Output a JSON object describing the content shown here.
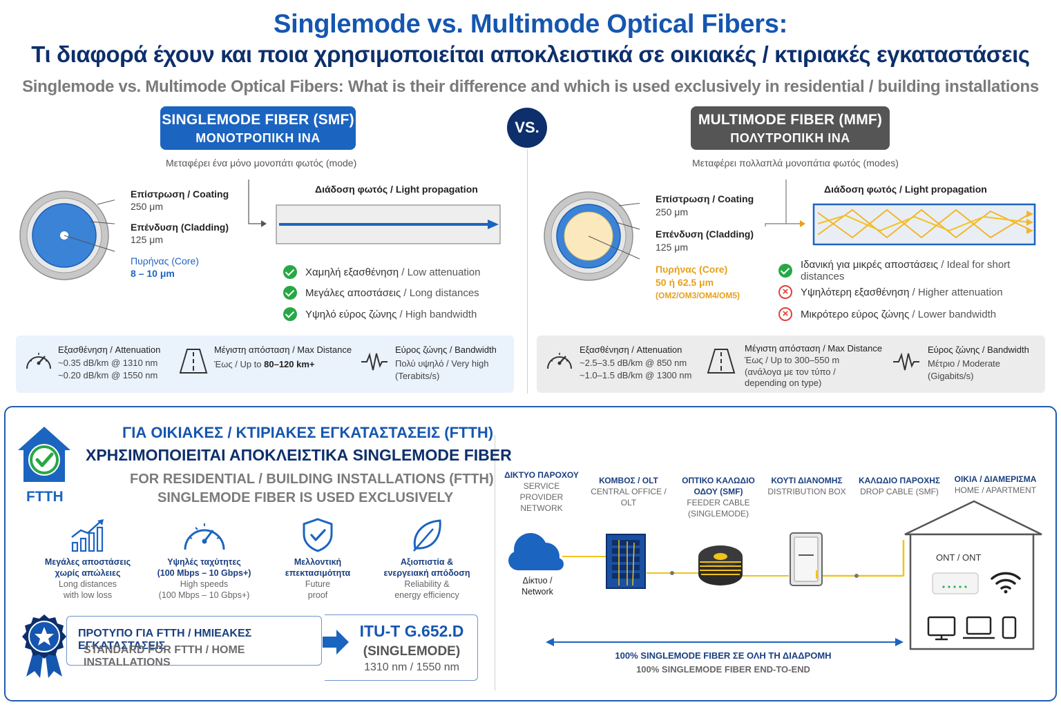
{
  "header": {
    "title_en": "Singlemode vs. Multimode Optical Fibers:",
    "title_gr": "Τι διαφορά έχουν και ποια χρησιμοποιείται αποκλειστικά σε οικιακές / κτιριακές εγκαταστάσεις",
    "subtitle": "Singlemode vs. Multimode Optical Fibers: What is their difference and which is used exclusively in residential / building installations"
  },
  "vs_label": "VS.",
  "smf": {
    "title": "SINGLEMODE FIBER (SMF)",
    "title_gr": "ΜΟΝΟΤΡΟΠΙΚΗ ΙΝΑ",
    "description": "Μεταφέρει ένα μόνο μονοπάτι φωτός (mode)",
    "coating_label": "Επίστρωση / Coating",
    "coating_value": "250 μm",
    "cladding_label": "Επένδυση (Cladding)",
    "cladding_value": "125 μm",
    "core_label": "Πυρήνας (Core)",
    "core_value": "8 – 10 μm",
    "propagation_label": "Διάδοση φωτός / Light propagation",
    "benefits": [
      {
        "gr": "Χαμηλή εξασθένηση",
        "en": " / Low attenuation"
      },
      {
        "gr": "Μεγάλες αποστάσεις",
        "en": " / Long distances"
      },
      {
        "gr": "Υψηλό εύρος ζώνης",
        "en": " / High bandwidth"
      }
    ],
    "stats": {
      "attenuation_title": "Εξασθένηση / Attenuation",
      "attenuation_1": "~0.35 dB/km @ 1310 nm",
      "attenuation_2": "~0.20 dB/km @ 1550 nm",
      "distance_title": "Μέγιστη απόσταση / Max Distance",
      "distance_prefix": "Έως / Up to ",
      "distance_value": "80–120 km+",
      "bandwidth_title": "Εύρος ζώνης / Bandwidth",
      "bandwidth_1": "Πολύ υψηλό / Very high",
      "bandwidth_2": "(Terabits/s)"
    }
  },
  "mmf": {
    "title": "MULTIMODE FIBER (MMF)",
    "title_gr": "ΠΟΛΥΤΡΟΠΙΚΗ ΙΝΑ",
    "description": "Μεταφέρει πολλαπλά μονοπάτια φωτός (modes)",
    "coating_label": "Επίστρωση / Coating",
    "coating_value": "250 μm",
    "cladding_label": "Επένδυση (Cladding)",
    "cladding_value": "125 μm",
    "core_label": "Πυρήνας (Core)",
    "core_value": "50 ή 62.5 μm",
    "core_types": "(OM2/OM3/OM4/OM5)",
    "propagation_label": "Διάδοση φωτός / Light propagation",
    "benefits": [
      {
        "gr": "Ιδανική για μικρές αποστάσεις",
        "en": " / Ideal for short distances",
        "ok": true
      },
      {
        "gr": "Υψηλότερη εξασθένηση",
        "en": " / Higher attenuation",
        "ok": false
      },
      {
        "gr": "Μικρότερο εύρος ζώνης",
        "en": " / Lower bandwidth",
        "ok": false
      }
    ],
    "stats": {
      "attenuation_title": "Εξασθένηση / Attenuation",
      "attenuation_1": "~2.5–3.5 dB/km @ 850 nm",
      "attenuation_2": "~1.0–1.5 dB/km @ 1300 nm",
      "distance_title": "Μέγιστη απόσταση / Max Distance",
      "distance_1": "Έως / Up to 300–550 m",
      "distance_2": "(ανάλογα με τον τύπο /",
      "distance_3": "depending on type)",
      "bandwidth_title": "Εύρος ζώνης / Bandwidth",
      "bandwidth_1": "Μέτριο / Moderate",
      "bandwidth_2": "(Gigabits/s)"
    }
  },
  "ftth": {
    "badge_label": "FTTH",
    "heading_1": "ΓΙΑ ΟΙΚΙΑΚΕΣ / ΚΤΙΡΙΑΚΕΣ ΕΓΚΑΤΑΣΤΑΣΕΙΣ (FTTH)",
    "heading_2": "ΧΡΗΣΙΜΟΠΟΙΕΙΤΑΙ ΑΠΟΚΛΕΙΣΤΙΚΑ SINGLEMODE FIBER",
    "heading_3": "FOR RESIDENTIAL / BUILDING INSTALLATIONS (FTTH)",
    "heading_4": "SINGLEMODE FIBER IS USED EXCLUSIVELY",
    "features": [
      {
        "icon": "growth-chart-icon",
        "gr_1": "Μεγάλες αποστάσεις",
        "gr_2": "χωρίς απώλειες",
        "en_1": "Long distances",
        "en_2": "with low loss"
      },
      {
        "icon": "speedometer-icon",
        "gr_1": "Υψηλές ταχύτητες",
        "gr_2": "(100 Mbps – 10 Gbps+)",
        "en_1": "High speeds",
        "en_2": "(100 Mbps – 10 Gbps+)"
      },
      {
        "icon": "shield-check-icon",
        "gr_1": "Μελλοντική",
        "gr_2": "επεκτασιμότητα",
        "en_1": "Future",
        "en_2": "proof"
      },
      {
        "icon": "leaf-icon",
        "gr_1": "Αξιοπιστία &",
        "gr_2": "ενεργειακή απόδοση",
        "en_1": "Reliability &",
        "en_2": "energy efficiency"
      }
    ],
    "standard_gr": "ΠΡΟΤΥΠΟ ΓΙΑ FTTH / ΗΜΙΕΑΚΕΣ ΕΓΚΑΤΑΣΤΑΣΕΙΣ",
    "standard_en": "STANDARD FOR FTTH / HOME INSTALLATIONS",
    "itu_code": "ITU-T G.652.D",
    "itu_type": "(SINGLEMODE)",
    "itu_wavelengths": "1310 nm / 1550 nm"
  },
  "network": {
    "nodes": [
      {
        "h1": "ΔΙΚΤΥΟ ΠΑΡΟΧΟΥ",
        "s1": "SERVICE PROVIDER",
        "s2": "NETWORK"
      },
      {
        "h1": "ΚΟΜΒΟΣ / OLT",
        "s1": "CENTRAL OFFICE / OLT"
      },
      {
        "h1": "ΟΠΤΙΚΟ ΚΑΛΩΔΙΟ",
        "h2": "ΟΔΟΥ (SMF)",
        "s1": "FEEDER CABLE",
        "s2": "(SINGLEMODE)"
      },
      {
        "h1": "ΚΟΥΤΙ ΔΙΑΝΟΜΗΣ",
        "s1": "DISTRIBUTION BOX"
      },
      {
        "h1": "ΚΑΛΩΔΙΟ ΠΑΡΟΧΗΣ",
        "s1": "DROP CABLE (SMF)"
      },
      {
        "h1": "ΟΙΚΙΑ / ΔΙΑΜΕΡΙΣΜΑ",
        "s1": "HOME / APARTMENT"
      }
    ],
    "cloud_label_1": "Δίκτυο /",
    "cloud_label_2": "Network",
    "ont_label": "ONT / ONT",
    "end_to_end_gr": "100% SINGLEMODE FIBER ΣΕ ΟΛΗ ΤΗ ΔΙΑΔΡΟΜΗ",
    "end_to_end_en": "100% SINGLEMODE FIBER END-TO-END"
  },
  "colors": {
    "smf_blue": "#1b64c0",
    "mmf_gray": "#555555",
    "dark_navy": "#0d2f6b",
    "fiber_yellow": "#f2c21b",
    "ok_green": "#27a844",
    "bad_red": "#e0403a"
  }
}
